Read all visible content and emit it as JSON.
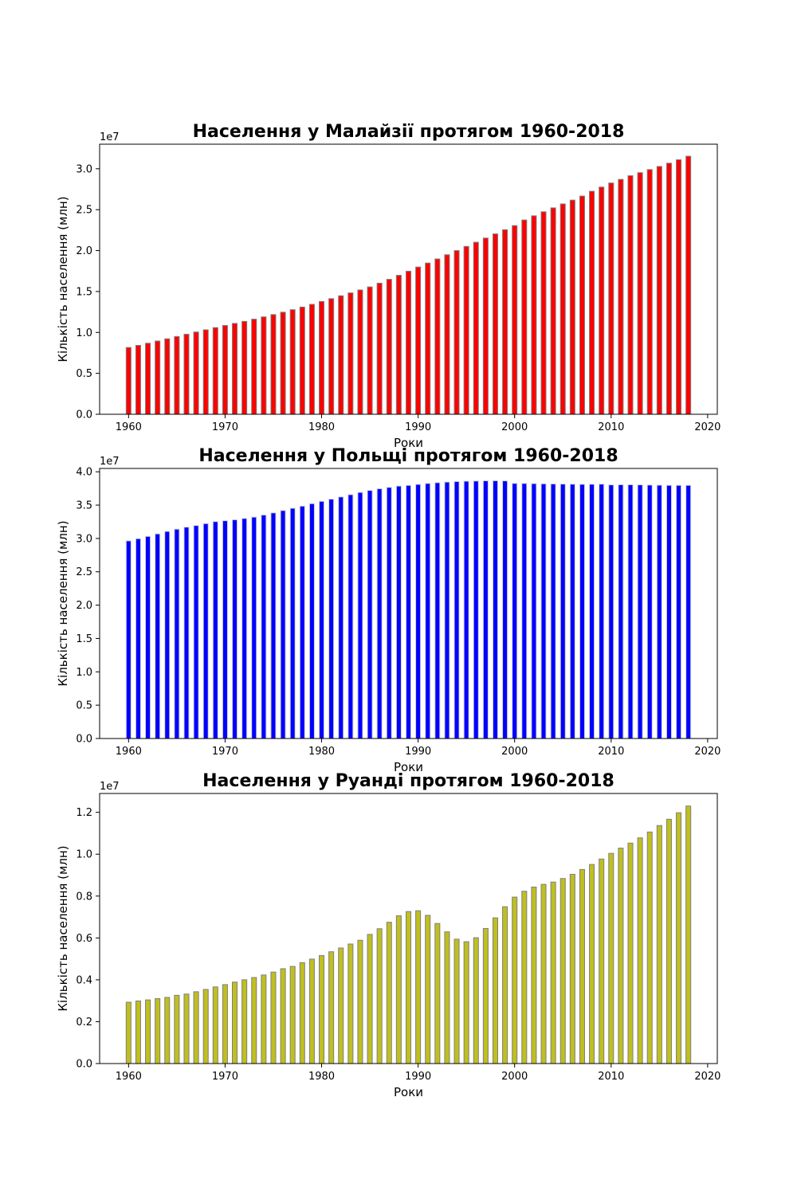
{
  "chart_data": [
    {
      "type": "bar",
      "title": "Населення у Малайзії протягом 1960-2018",
      "xlabel": "Роки",
      "ylabel": "Кількість населення (млн)",
      "offset_text": "1e7",
      "xlim": [
        1957,
        2021
      ],
      "ylim": [
        0,
        33000000.0
      ],
      "xticks": [
        1960,
        1970,
        1980,
        1990,
        2000,
        2010,
        2020
      ],
      "xtick_labels": [
        "1960",
        "1970",
        "1980",
        "1990",
        "2000",
        "2010",
        "2020"
      ],
      "yticks": [
        0,
        5000000,
        10000000,
        15000000,
        20000000,
        25000000,
        30000000
      ],
      "ytick_labels": [
        "0.0",
        "0.5",
        "1.0",
        "1.5",
        "2.0",
        "2.5",
        "3.0"
      ],
      "bar_color": "#ff0000",
      "edge_color": "#808080",
      "x": [
        1960,
        1961,
        1962,
        1963,
        1964,
        1965,
        1966,
        1967,
        1968,
        1969,
        1970,
        1971,
        1972,
        1973,
        1974,
        1975,
        1976,
        1977,
        1978,
        1979,
        1980,
        1981,
        1982,
        1983,
        1984,
        1985,
        1986,
        1987,
        1988,
        1989,
        1990,
        1991,
        1992,
        1993,
        1994,
        1995,
        1996,
        1997,
        1998,
        1999,
        2000,
        2001,
        2002,
        2003,
        2004,
        2005,
        2006,
        2007,
        2008,
        2009,
        2010,
        2011,
        2012,
        2013,
        2014,
        2015,
        2016,
        2017,
        2018
      ],
      "values": [
        8160000,
        8420000,
        8680000,
        8950000,
        9220000,
        9500000,
        9780000,
        10050000,
        10320000,
        10590000,
        10850000,
        11100000,
        11350000,
        11620000,
        11900000,
        12180000,
        12470000,
        12780000,
        13100000,
        13430000,
        13780000,
        14130000,
        14480000,
        14830000,
        15190000,
        15560000,
        16020000,
        16490000,
        16980000,
        17480000,
        17990000,
        18480000,
        18980000,
        19490000,
        20000000,
        20510000,
        21020000,
        21530000,
        22040000,
        22550000,
        23050000,
        23740000,
        24250000,
        24740000,
        25220000,
        25700000,
        26170000,
        26660000,
        27250000,
        27760000,
        28260000,
        28700000,
        29150000,
        29520000,
        29900000,
        30280000,
        30680000,
        31100000,
        31530000
      ]
    },
    {
      "type": "bar",
      "title": "Населення у Польщі протягом 1960-2018",
      "xlabel": "Роки",
      "ylabel": "Кількість населення (млн)",
      "offset_text": "1e7",
      "xlim": [
        1957,
        2021
      ],
      "ylim": [
        0,
        40500000.0
      ],
      "xticks": [
        1960,
        1970,
        1980,
        1990,
        2000,
        2010,
        2020
      ],
      "xtick_labels": [
        "1960",
        "1970",
        "1980",
        "1990",
        "2000",
        "2010",
        "2020"
      ],
      "yticks": [
        0,
        5000000,
        10000000,
        15000000,
        20000000,
        25000000,
        30000000,
        35000000,
        40000000
      ],
      "ytick_labels": [
        "0.0",
        "0.5",
        "1.0",
        "1.5",
        "2.0",
        "2.5",
        "3.0",
        "3.5",
        "4.0"
      ],
      "bar_color": "#0000ff",
      "edge_color": "#d3d3d3",
      "x": [
        1960,
        1961,
        1962,
        1963,
        1964,
        1965,
        1966,
        1967,
        1968,
        1969,
        1970,
        1971,
        1972,
        1973,
        1974,
        1975,
        1976,
        1977,
        1978,
        1979,
        1980,
        1981,
        1982,
        1983,
        1984,
        1985,
        1986,
        1987,
        1988,
        1989,
        1990,
        1991,
        1992,
        1993,
        1994,
        1995,
        1996,
        1997,
        1998,
        1999,
        2000,
        2001,
        2002,
        2003,
        2004,
        2005,
        2006,
        2007,
        2008,
        2009,
        2010,
        2011,
        2012,
        2013,
        2014,
        2015,
        2016,
        2017,
        2018
      ],
      "values": [
        29640000,
        29970000,
        30310000,
        30690000,
        31060000,
        31400000,
        31700000,
        31940000,
        32230000,
        32530000,
        32660000,
        32800000,
        33000000,
        33200000,
        33520000,
        33840000,
        34190000,
        34530000,
        34850000,
        35220000,
        35570000,
        35900000,
        36230000,
        36570000,
        36910000,
        37200000,
        37460000,
        37660000,
        37860000,
        37960000,
        38110000,
        38250000,
        38370000,
        38460000,
        38540000,
        38590000,
        38620000,
        38650000,
        38660000,
        38640000,
        38260000,
        38250000,
        38230000,
        38200000,
        38180000,
        38160000,
        38140000,
        38120000,
        38130000,
        38150000,
        38040000,
        38060000,
        38060000,
        38040000,
        38010000,
        37990000,
        37970000,
        37970000,
        37970000
      ]
    },
    {
      "type": "bar",
      "title": "Населення у Руанді протягом 1960-2018",
      "xlabel": "Роки",
      "ylabel": "Кількість населення (млн)",
      "offset_text": "1e7",
      "xlim": [
        1957,
        2021
      ],
      "ylim": [
        0,
        12900000.0
      ],
      "xticks": [
        1960,
        1970,
        1980,
        1990,
        2000,
        2010,
        2020
      ],
      "xtick_labels": [
        "1960",
        "1970",
        "1980",
        "1990",
        "2000",
        "2010",
        "2020"
      ],
      "yticks": [
        0,
        2000000,
        4000000,
        6000000,
        8000000,
        10000000,
        12000000
      ],
      "ytick_labels": [
        "0.0",
        "0.2",
        "0.4",
        "0.6",
        "0.8",
        "1.0",
        "1.2"
      ],
      "bar_color": "#bfbf1f",
      "edge_color": "#808080",
      "x": [
        1960,
        1961,
        1962,
        1963,
        1964,
        1965,
        1966,
        1967,
        1968,
        1969,
        1970,
        1971,
        1972,
        1973,
        1974,
        1975,
        1976,
        1977,
        1978,
        1979,
        1980,
        1981,
        1982,
        1983,
        1984,
        1985,
        1986,
        1987,
        1988,
        1989,
        1990,
        1991,
        1992,
        1993,
        1994,
        1995,
        1996,
        1997,
        1998,
        1999,
        2000,
        2001,
        2002,
        2003,
        2004,
        2005,
        2006,
        2007,
        2008,
        2009,
        2010,
        2011,
        2012,
        2013,
        2014,
        2015,
        2016,
        2017,
        2018
      ],
      "values": [
        2930000,
        2990000,
        3040000,
        3100000,
        3160000,
        3260000,
        3320000,
        3430000,
        3540000,
        3660000,
        3770000,
        3890000,
        4000000,
        4110000,
        4230000,
        4370000,
        4530000,
        4640000,
        4820000,
        4990000,
        5160000,
        5340000,
        5520000,
        5710000,
        5890000,
        6170000,
        6440000,
        6750000,
        7060000,
        7260000,
        7300000,
        7080000,
        6690000,
        6290000,
        5940000,
        5820000,
        6010000,
        6450000,
        6960000,
        7490000,
        7950000,
        8230000,
        8430000,
        8560000,
        8670000,
        8840000,
        9040000,
        9270000,
        9510000,
        9770000,
        10040000,
        10290000,
        10530000,
        10780000,
        11060000,
        11370000,
        11670000,
        11980000,
        12300000
      ]
    }
  ]
}
